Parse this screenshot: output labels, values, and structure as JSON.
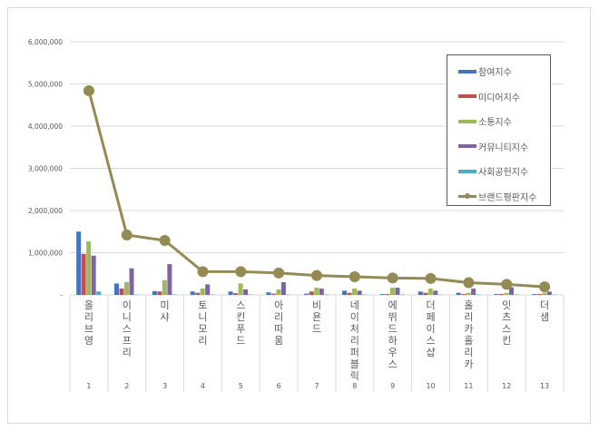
{
  "chart_data": {
    "type": "bar",
    "title": "",
    "xlabel": "",
    "ylabel": "",
    "ylim": [
      0,
      6000000
    ],
    "yticks": [
      "-",
      "1,000,000",
      "2,000,000",
      "3,000,000",
      "4,000,000",
      "5,000,000",
      "6,000,000"
    ],
    "categories": [
      "올리브영",
      "이니스프리",
      "미샤",
      "토니모리",
      "스킨푸드",
      "아리따움",
      "비욘드",
      "네이처리퍼블릭",
      "에뛰드하우스",
      "더페이스샵",
      "홀리카홀리카",
      "잇츠스킨",
      "더샘"
    ],
    "ranks": [
      "1",
      "2",
      "3",
      "4",
      "5",
      "6",
      "7",
      "8",
      "9",
      "10",
      "11",
      "12",
      "13"
    ],
    "series": [
      {
        "name": "참여지수",
        "type": "bar",
        "color": "#4472c4",
        "values": [
          1500000,
          270000,
          90000,
          80000,
          80000,
          60000,
          30000,
          100000,
          20000,
          80000,
          50000,
          20000,
          20000
        ]
      },
      {
        "name": "미디어지수",
        "type": "bar",
        "color": "#c0504d",
        "values": [
          970000,
          150000,
          80000,
          50000,
          40000,
          30000,
          80000,
          50000,
          20000,
          50000,
          20000,
          20000,
          20000
        ]
      },
      {
        "name": "소통지수",
        "type": "bar",
        "color": "#9bbb59",
        "values": [
          1270000,
          300000,
          350000,
          150000,
          270000,
          130000,
          170000,
          150000,
          170000,
          150000,
          50000,
          50000,
          50000
        ]
      },
      {
        "name": "커뮤니티지수",
        "type": "bar",
        "color": "#8064a2",
        "values": [
          930000,
          630000,
          730000,
          250000,
          130000,
          300000,
          150000,
          100000,
          170000,
          100000,
          150000,
          180000,
          80000
        ]
      },
      {
        "name": "사회공헌지수",
        "type": "bar",
        "color": "#4bacc6",
        "values": [
          80000,
          10000,
          10000,
          10000,
          10000,
          10000,
          10000,
          10000,
          10000,
          10000,
          10000,
          10000,
          10000
        ]
      },
      {
        "name": "브랜드평판지수",
        "type": "line",
        "color": "#948a54",
        "values": [
          4840000,
          1420000,
          1290000,
          550000,
          550000,
          520000,
          460000,
          430000,
          400000,
          390000,
          290000,
          250000,
          190000
        ]
      }
    ],
    "legend_position": "right",
    "grid": true
  }
}
